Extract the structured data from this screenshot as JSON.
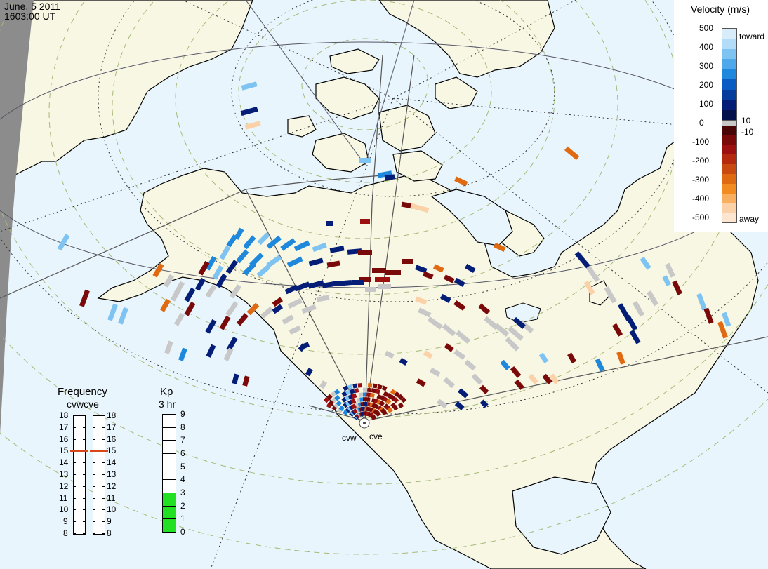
{
  "header": {
    "date": "June, 5 2011",
    "time": "1603:00 UT"
  },
  "velocity_legend": {
    "title": "Velocity (m/s)",
    "ticks": [
      "500",
      "400",
      "300",
      "200",
      "100",
      "0",
      "-100",
      "-200",
      "-300",
      "-400",
      "-500"
    ],
    "toward_label": "toward",
    "away_label": "away",
    "threshold_pos": "10",
    "threshold_neg": "-10",
    "toward_colors": [
      "#d9ecfa",
      "#b3dcf8",
      "#7fc3f2",
      "#4fa8ea",
      "#1e88dd",
      "#0a5cc4",
      "#063c9c",
      "#041e78",
      "#02104c"
    ],
    "away_colors": [
      "#4a0606",
      "#7a0a0a",
      "#9c1010",
      "#b52a0e",
      "#c94a10",
      "#e06a12",
      "#f28c20",
      "#f8b060",
      "#fbd2a8",
      "#fde6d0"
    ],
    "ground_scatter_color": "#c8c8c8"
  },
  "frequency_panel": {
    "title": "Frequency",
    "radar_labels": "cvwcve",
    "ticks": [
      "18",
      "17",
      "16",
      "15",
      "14",
      "13",
      "12",
      "11",
      "10",
      "9",
      "8"
    ],
    "cvw_frequency_mhz": 15,
    "cve_frequency_mhz": 15
  },
  "kp_panel": {
    "title": "Kp",
    "subtitle": "3 hr",
    "ticks": [
      "9",
      "8",
      "7",
      "6",
      "5",
      "4",
      "3",
      "2",
      "1",
      "0"
    ],
    "kp_value": 3,
    "fill_color": "#22e022"
  },
  "radars": [
    {
      "code": "cvw"
    },
    {
      "code": "cve"
    }
  ],
  "map": {
    "land_color": "#f8f7e4",
    "ocean_color": "#e9f5fc",
    "night_color": "#8c8c8c",
    "coastline_color": "#000000"
  }
}
